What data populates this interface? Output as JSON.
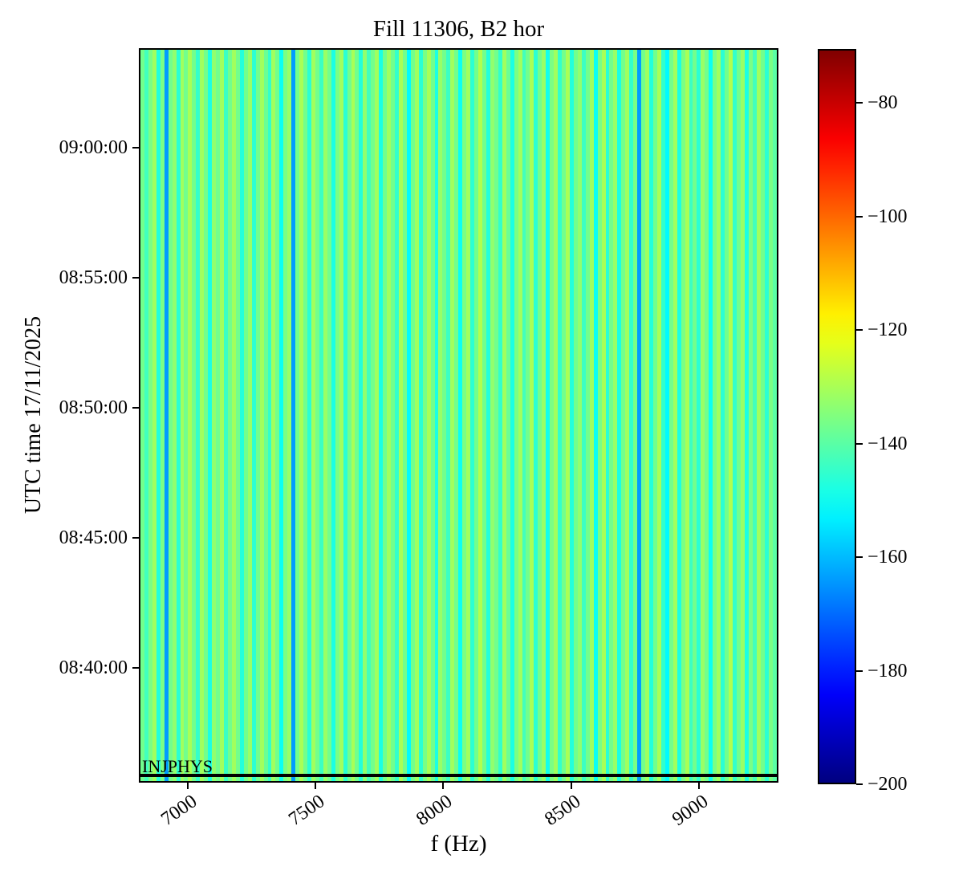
{
  "chart_data": {
    "type": "heatmap",
    "title": "Fill 11306, B2 hor",
    "xlabel": "f (Hz)",
    "ylabel": "UTC time 17/11/2025",
    "annotation": "INJPHYS",
    "colormap": "jet",
    "grid": false,
    "x_range_hz": [
      6810,
      9310
    ],
    "x_ticks": [
      7000,
      7500,
      8000,
      8500,
      9000
    ],
    "y_top_time": "09:03:50",
    "y_bottom_time": "08:35:35",
    "y_ticks": [
      "09:00:00",
      "08:55:00",
      "08:50:00",
      "08:45:00",
      "08:40:00"
    ],
    "injphys_time_frac": 0.992,
    "colorbar": {
      "vmin": -200,
      "vmax": -70.5,
      "ticks": [
        -80,
        -100,
        -120,
        -140,
        -160,
        -180,
        -200
      ],
      "orientation": "vertical",
      "position": "right"
    },
    "column_values_db": [
      -137,
      -143,
      -136,
      -131,
      -147,
      -136,
      -164,
      -137,
      -133,
      -146,
      -131,
      -137,
      -130,
      -137,
      -145,
      -131,
      -137,
      -148,
      -133,
      -137,
      -131,
      -144,
      -137,
      -131,
      -137,
      -147,
      -137,
      -132,
      -146,
      -137,
      -131,
      -138,
      -145,
      -131,
      -137,
      -150,
      -136,
      -132,
      -164,
      -137,
      -130,
      -137,
      -146,
      -131,
      -137,
      -144,
      -132,
      -137,
      -148,
      -136,
      -131,
      -146,
      -137,
      -130,
      -137,
      -147,
      -133,
      -143,
      -137,
      -131,
      -148,
      -137,
      -131,
      -137,
      -145,
      -130,
      -137,
      -152,
      -137,
      -131,
      -146,
      -136,
      -130,
      -137,
      -148,
      -132,
      -137,
      -144,
      -131,
      -137,
      -150,
      -136,
      -131,
      -146,
      -137,
      -129,
      -137,
      -147,
      -133,
      -137,
      -145,
      -131,
      -138,
      -148,
      -136,
      -131,
      -143,
      -137,
      -130,
      -146,
      -137,
      -132,
      -149,
      -136,
      -131,
      -145,
      -137,
      -130,
      -147,
      -137,
      -133,
      -144,
      -137,
      -131,
      -150,
      -136,
      -130,
      -146,
      -137,
      -132,
      -148,
      -137,
      -131,
      -145,
      -136,
      -164,
      -137,
      -131,
      -147,
      -137,
      -130,
      -145,
      -152,
      -137,
      -131,
      -148,
      -136,
      -130,
      -144,
      -137,
      -146,
      -132,
      -137,
      -150,
      -136,
      -131,
      -146,
      -137,
      -129,
      -145,
      -137,
      -132,
      -148,
      -136,
      -143,
      -131,
      -137,
      -146,
      -136,
      -140
    ]
  },
  "colors": {
    "background": "#ffffff",
    "spine": "#000000",
    "annotation_line": "#000000"
  }
}
